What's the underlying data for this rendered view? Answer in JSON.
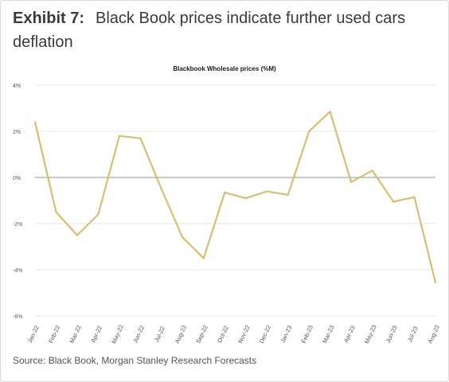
{
  "header": {
    "exhibit_label": "Exhibit 7:",
    "title": "Black Book prices indicate further used cars deflation"
  },
  "footer": {
    "source": "Source: Black Book, Morgan Stanley Research Forecasts"
  },
  "colors": {
    "line": "#d4bf72",
    "grid": "#e6e6e6",
    "zero_line": "#a6a6a6",
    "text": "#3a3a3a"
  },
  "chart_data": {
    "type": "line",
    "title": "Blackbook Wholesale prices (%M)",
    "xlabel": "",
    "ylabel": "",
    "ylim": [
      -6,
      4
    ],
    "yticks": [
      4,
      2,
      0,
      -2,
      -4,
      -6
    ],
    "ytick_labels": [
      "4%",
      "2%",
      "0%",
      "-2%",
      "-4%",
      "-6%"
    ],
    "grid": true,
    "legend": "none",
    "categories": [
      "Jan-22",
      "Feb-22",
      "Mar-22",
      "Apr-22",
      "May-22",
      "Jun-22",
      "Jul-22",
      "Aug-22",
      "Sep-22",
      "Oct-22",
      "Nov-22",
      "Dec-22",
      "Jan-23",
      "Feb-23",
      "Mar-23",
      "Apr-23",
      "May-23",
      "Jun-23",
      "Jul-23",
      "Aug-23"
    ],
    "series": [
      {
        "values": [
          2.4,
          -1.5,
          -2.5,
          -1.6,
          1.8,
          1.7,
          -0.5,
          -2.6,
          -3.5,
          -0.65,
          -0.9,
          -0.6,
          -0.75,
          2.0,
          2.85,
          -0.2,
          0.3,
          -1.05,
          -0.85,
          -4.55
        ]
      }
    ]
  }
}
